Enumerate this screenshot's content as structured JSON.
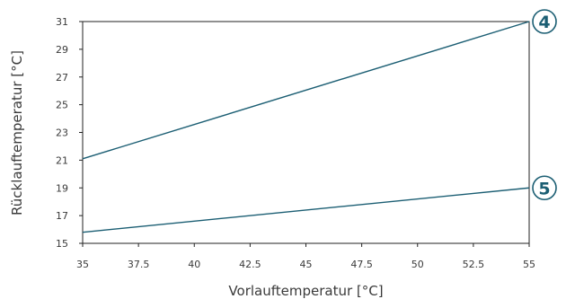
{
  "chart_data": {
    "type": "line",
    "xlabel": "Vorlauftemperatur [°C]",
    "ylabel": "Rücklauftemperatur [°C]",
    "xlim": [
      35,
      55
    ],
    "ylim": [
      15,
      31
    ],
    "x_ticks": [
      "35",
      "37.5",
      "40",
      "42.5",
      "45",
      "47.5",
      "50",
      "52.5",
      "55"
    ],
    "y_ticks": [
      "15",
      "17",
      "19",
      "21",
      "23",
      "25",
      "27",
      "29",
      "31"
    ],
    "grid": false,
    "line_color": "#1b5e73",
    "series": [
      {
        "marker": "4",
        "x": [
          35,
          55
        ],
        "y": [
          21.1,
          31.0
        ]
      },
      {
        "marker": "5",
        "x": [
          35,
          55
        ],
        "y": [
          15.8,
          19.0
        ]
      }
    ]
  }
}
